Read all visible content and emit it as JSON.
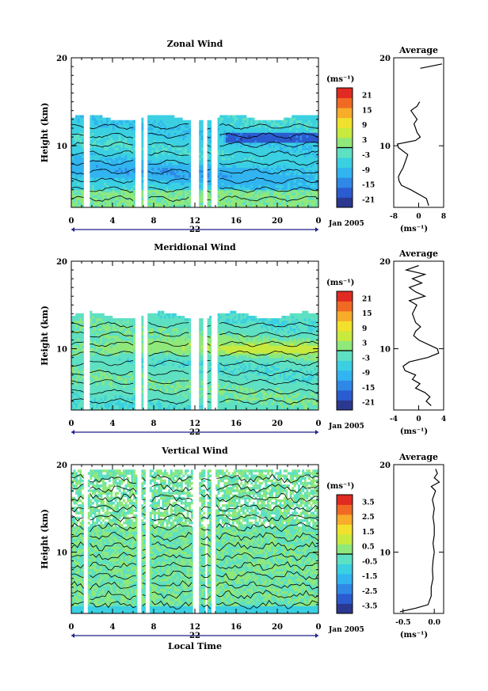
{
  "chart_data": [
    {
      "type": "heatmap",
      "title": "Zonal Wind",
      "ylabel": "Height (km)",
      "unit_label": "(ms⁻¹)",
      "xticks": [
        "0",
        "4",
        "8",
        "12",
        "16",
        "20",
        "0"
      ],
      "xlim": [
        0,
        24
      ],
      "ylim": [
        3,
        20
      ],
      "yticks": [
        "10",
        "20"
      ],
      "date_center_label": "22",
      "date_right_label": "Jan 2005",
      "colorbar_ticks": [
        "21",
        "15",
        "9",
        "3",
        "-3",
        "-9",
        "-15",
        "-21"
      ],
      "colorbar_range": [
        -24,
        24
      ],
      "gap_hours": [
        [
          1.3,
          1.7
        ],
        [
          6.3,
          6.7
        ],
        [
          7.1,
          7.4
        ],
        [
          11.7,
          12.4
        ],
        [
          12.8,
          13.2
        ],
        [
          13.6,
          14.2
        ]
      ],
      "top_height_km": 13.2,
      "profile": {
        "title": "Average",
        "xlabel": "(ms⁻¹)",
        "xticks": [
          "-8",
          "0",
          "8"
        ],
        "xlim": [
          -8,
          8
        ],
        "yticks": [
          "10",
          "20"
        ],
        "ylim": [
          3,
          20
        ],
        "heights": [
          3.2,
          4.0,
          5.0,
          5.5,
          6.0,
          6.5,
          7.0,
          7.5,
          8.0,
          9.0,
          9.8,
          10.2,
          10.6,
          11.0,
          11.5,
          12.0,
          12.5,
          13.0,
          13.5,
          14.0,
          14.5,
          15.0
        ],
        "values": [
          3.2,
          2.5,
          -2.5,
          -5.5,
          -6.3,
          -6.5,
          -5.8,
          -5.0,
          -4.5,
          -3.5,
          -6.5,
          -6.8,
          -1.0,
          0.5,
          -0.5,
          -1.0,
          -1.5,
          -0.5,
          -1.5,
          -2.5,
          -0.5,
          0.3
        ],
        "extra_segment_heights": [
          18.8,
          19.3
        ],
        "extra_segment_values": [
          0.5,
          7.5
        ]
      }
    },
    {
      "type": "heatmap",
      "title": "Meridional Wind",
      "ylabel": "Height (km)",
      "unit_label": "(ms⁻¹)",
      "xticks": [
        "0",
        "4",
        "8",
        "12",
        "16",
        "20",
        "0"
      ],
      "xlim": [
        0,
        24
      ],
      "ylim": [
        3,
        20
      ],
      "yticks": [
        "10",
        "20"
      ],
      "date_center_label": "22",
      "date_right_label": "Jan 2005",
      "colorbar_ticks": [
        "21",
        "15",
        "9",
        "3",
        "-3",
        "-9",
        "-15",
        "-21"
      ],
      "colorbar_range": [
        -24,
        24
      ],
      "gap_hours": [
        [
          1.3,
          1.7
        ],
        [
          6.3,
          6.7
        ],
        [
          7.1,
          7.4
        ],
        [
          11.7,
          12.4
        ],
        [
          12.8,
          13.2
        ],
        [
          13.6,
          14.2
        ]
      ],
      "top_height_km": 13.8,
      "profile": {
        "title": "Average",
        "xlabel": "(ms⁻¹)",
        "xticks": [
          "-4",
          "0",
          "4"
        ],
        "xlim": [
          -4,
          4
        ],
        "yticks": [
          "10",
          "20"
        ],
        "ylim": [
          3,
          20
        ],
        "heights": [
          3.5,
          4.0,
          4.5,
          5.0,
          5.5,
          6.0,
          6.5,
          7.0,
          7.5,
          8.0,
          8.5,
          9.0,
          9.5,
          10.0,
          10.5,
          11.0,
          11.5,
          12.0,
          12.5,
          13.0,
          14.0,
          15.0,
          15.5,
          16.0,
          16.5,
          17.0,
          17.5,
          18.0,
          18.5,
          19.0,
          19.5
        ],
        "values": [
          2.0,
          1.2,
          1.8,
          1.0,
          -0.5,
          0.2,
          -1.0,
          -0.5,
          -2.2,
          -2.5,
          -1.5,
          1.5,
          3.2,
          3.0,
          1.5,
          0.0,
          -0.8,
          -0.5,
          0.3,
          -0.5,
          -1.0,
          -0.3,
          -1.5,
          1.0,
          -0.5,
          -1.5,
          0.5,
          -1.0,
          1.0,
          -2.0,
          0.0
        ]
      }
    },
    {
      "type": "heatmap",
      "title": "Vertical Wind",
      "ylabel": "Height (km)",
      "xlabel": "Local Time",
      "unit_label": "(ms⁻¹)",
      "xticks": [
        "0",
        "4",
        "8",
        "12",
        "16",
        "20",
        "0"
      ],
      "xlim": [
        0,
        24
      ],
      "ylim": [
        3,
        20
      ],
      "yticks": [
        "10",
        "20"
      ],
      "date_center_label": "22",
      "date_right_label": "Jan 2005",
      "colorbar_ticks": [
        "3.5",
        "2.5",
        "1.5",
        "0.5",
        "-0.5",
        "-1.5",
        "-2.5",
        "-3.5"
      ],
      "colorbar_range": [
        -4,
        4
      ],
      "gap_hours": [
        [
          1.3,
          1.6
        ],
        [
          6.5,
          6.8
        ],
        [
          7.2,
          7.5
        ],
        [
          11.8,
          12.3
        ],
        [
          12.9,
          13.2
        ],
        [
          13.7,
          14.1
        ]
      ],
      "top_height_km": 19.5,
      "profile": {
        "title": "Average",
        "xlabel": "(ms⁻¹)",
        "xticks": [
          "-0.5",
          "0.0"
        ],
        "xlim": [
          -0.65,
          0.15
        ],
        "yticks": [
          "10",
          "20"
        ],
        "ylim": [
          3,
          20
        ],
        "heights": [
          3.2,
          3.6,
          4.0,
          5.0,
          6.0,
          7.0,
          8.0,
          9.0,
          10.0,
          11.0,
          12.0,
          13.0,
          14.0,
          15.0,
          16.0,
          17.0,
          17.5,
          18.0,
          18.5,
          19.0,
          19.5
        ],
        "values": [
          -0.55,
          -0.3,
          -0.1,
          -0.05,
          -0.05,
          -0.02,
          -0.03,
          -0.02,
          0.0,
          -0.02,
          0.0,
          0.0,
          -0.02,
          0.0,
          -0.03,
          0.02,
          -0.05,
          0.08,
          0.0,
          0.05,
          0.02
        ]
      }
    }
  ],
  "colors": {
    "scale": [
      "#2b3890",
      "#2b5bd0",
      "#2f88e6",
      "#31b4f0",
      "#3ad0e2",
      "#5ee0c2",
      "#8fe87a",
      "#c8ea3e",
      "#f2e12c",
      "#f7ac2a",
      "#f06a24",
      "#e02a22"
    ],
    "gap": "#ffffff",
    "line": "#000000",
    "axis_marker": "#1f1f8a"
  }
}
